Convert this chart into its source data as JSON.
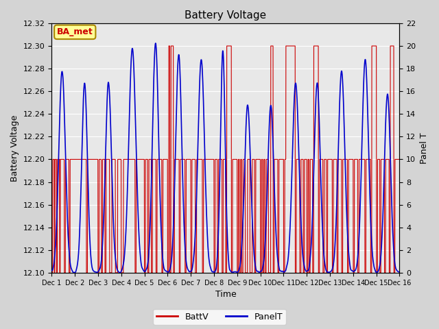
{
  "title": "Battery Voltage",
  "xlabel": "Time",
  "ylabel_left": "Battery Voltage",
  "ylabel_right": "Panel T",
  "ylim_left": [
    12.1,
    12.32
  ],
  "ylim_right": [
    0,
    22
  ],
  "yticks_left": [
    12.1,
    12.12,
    12.14,
    12.16,
    12.18,
    12.2,
    12.22,
    12.24,
    12.26,
    12.28,
    12.3,
    12.32
  ],
  "yticks_right": [
    0,
    2,
    4,
    6,
    8,
    10,
    12,
    14,
    16,
    18,
    20,
    22
  ],
  "xtick_labels": [
    "Dec 1",
    "Dec 2",
    "Dec 3",
    "Dec 4",
    "Dec 5",
    "Dec 6",
    "Dec 7",
    "Dec 8",
    "Dec 9",
    "Dec 10",
    "Dec 11",
    "Dec 12",
    "Dec 13",
    "Dec 14",
    "Dec 15",
    "Dec 16"
  ],
  "batt_color": "#cc0000",
  "panel_color": "#0000cc",
  "bg_color": "#e8e8e8",
  "legend_label_batt": "BattV",
  "legend_label_panel": "PanelT",
  "annotation_text": "BA_met",
  "annotation_bg": "#ffff99",
  "annotation_border": "#aa8800",
  "annotation_text_color": "#cc0000",
  "fig_bg": "#d4d4d4"
}
